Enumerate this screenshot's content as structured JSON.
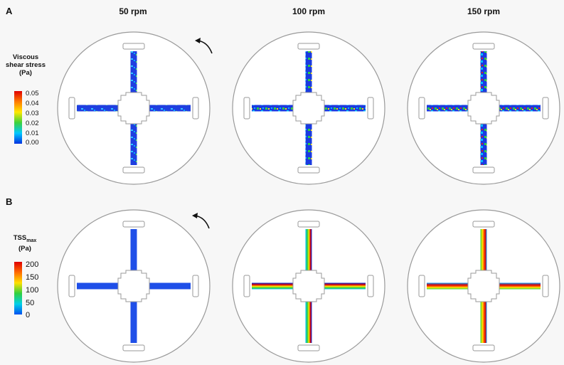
{
  "panel_a_label": "A",
  "panel_b_label": "B",
  "columns": [
    "50 rpm",
    "100 rpm",
    "150 rpm"
  ],
  "legend_a": {
    "title_lines": [
      "Viscous",
      "shear stress",
      "(Pa)"
    ],
    "ticks": [
      "0.05",
      "0.04",
      "0.03",
      "0.02",
      "0.01",
      "0.00"
    ]
  },
  "legend_b": {
    "title_main": "TSS",
    "title_sub": "max",
    "title_unit": "(Pa)",
    "ticks": [
      "200",
      "150",
      "100",
      "50",
      "0"
    ]
  },
  "colors": {
    "low": "#0032d8",
    "mid": "#00c0ff",
    "green": "#38d23c",
    "yellow": "#ffe800",
    "high": "#e00000",
    "outline": "#9a9a9a"
  }
}
